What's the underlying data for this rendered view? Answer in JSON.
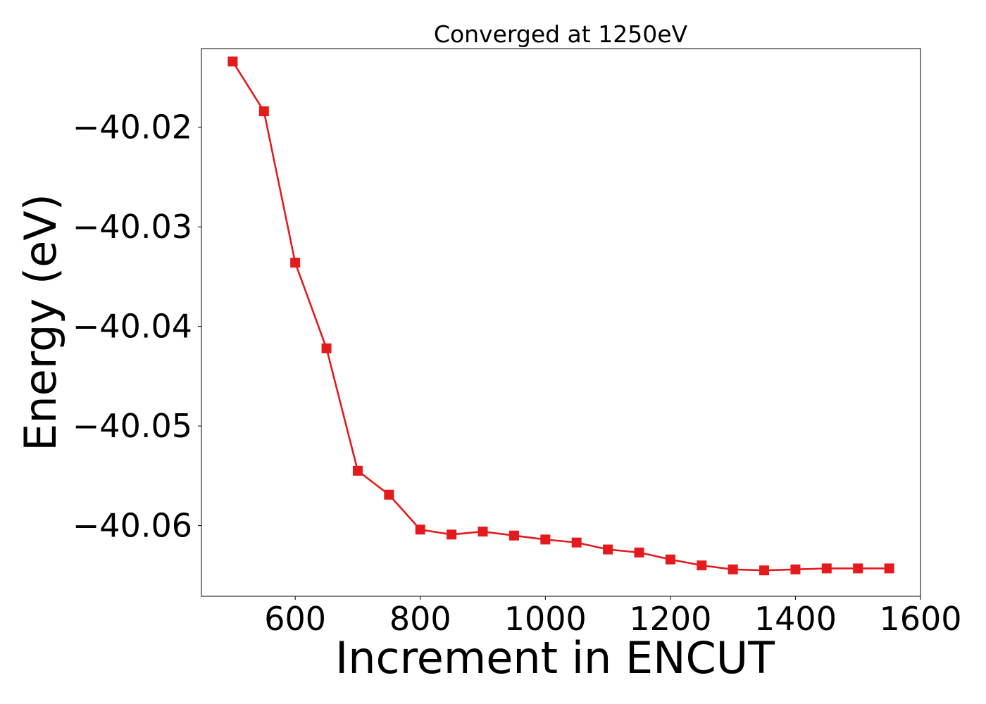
{
  "chart_data": {
    "type": "line",
    "title": "Converged at 1250eV",
    "xlabel": "Increment in ENCUT",
    "ylabel": "Energy (eV)",
    "xlim": [
      450,
      1600
    ],
    "ylim": [
      -40.0671,
      -40.0121
    ],
    "xticks": [
      600,
      800,
      1000,
      1200,
      1400,
      1600
    ],
    "xtick_labels": [
      "600",
      "800",
      "1000",
      "1200",
      "1400",
      "1600"
    ],
    "yticks": [
      -40.02,
      -40.03,
      -40.04,
      -40.05,
      -40.06
    ],
    "ytick_labels": [
      "−40.02",
      "−40.03",
      "−40.04",
      "−40.05",
      "−40.06"
    ],
    "grid": false,
    "legend": "none",
    "series": [
      {
        "color": "#e41a1c",
        "marker": "square",
        "x": [
          500,
          550,
          600,
          650,
          700,
          750,
          800,
          850,
          900,
          950,
          1000,
          1050,
          1100,
          1150,
          1200,
          1250,
          1300,
          1350,
          1400,
          1450,
          1500,
          1550
        ],
        "y": [
          -40.0134,
          -40.0184,
          -40.0336,
          -40.0422,
          -40.0545,
          -40.0569,
          -40.0604,
          -40.0609,
          -40.0606,
          -40.061,
          -40.0614,
          -40.0617,
          -40.0624,
          -40.0627,
          -40.0634,
          -40.064,
          -40.0644,
          -40.0645,
          -40.0644,
          -40.0643,
          -40.0643,
          -40.0643
        ]
      }
    ]
  }
}
